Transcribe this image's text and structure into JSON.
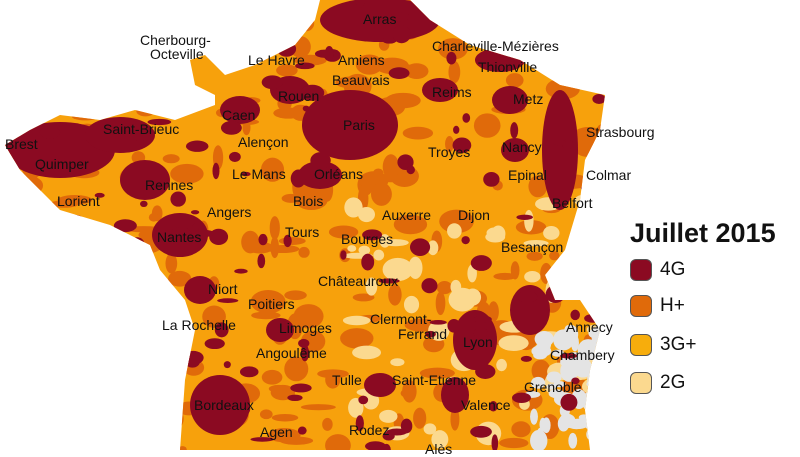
{
  "legend": {
    "title": "Juillet 2015",
    "items": [
      {
        "label": "4G",
        "color": "#8b0a22"
      },
      {
        "label": "H+",
        "color": "#e06a0a"
      },
      {
        "label": "3G+",
        "color": "#f7ad0c"
      },
      {
        "label": "2G",
        "color": "#fbd98f"
      }
    ]
  },
  "cities": [
    "Arras",
    "Cherbourg-",
    "Octeville",
    "Le Havre",
    "Amiens",
    "Charleville-Mézières",
    "Beauvais",
    "Thionville",
    "Rouen",
    "Reims",
    "Metz",
    "Caen",
    "Saint-Brieuc",
    "Paris",
    "Strasbourg",
    "Brest",
    "Alençon",
    "Nancy",
    "Troyes",
    "Quimper",
    "Le Mans",
    "Orléans",
    "Epinal",
    "Colmar",
    "Rennes",
    "Lorient",
    "Blois",
    "Belfort",
    "Angers",
    "Auxerre",
    "Dijon",
    "Nantes",
    "Tours",
    "Bourges",
    "Besançon",
    "Châteauroux",
    "Niort",
    "Poitiers",
    "Clermont-",
    "Ferrand",
    "Annecy",
    "La Rochelle",
    "Limoges",
    "Lyon",
    "Chambery",
    "Angoulême",
    "Tulle",
    "Saint-Etienne",
    "Grenoble",
    "Bordeaux",
    "Valence",
    "Agen",
    "Rodez",
    "Alès"
  ]
}
